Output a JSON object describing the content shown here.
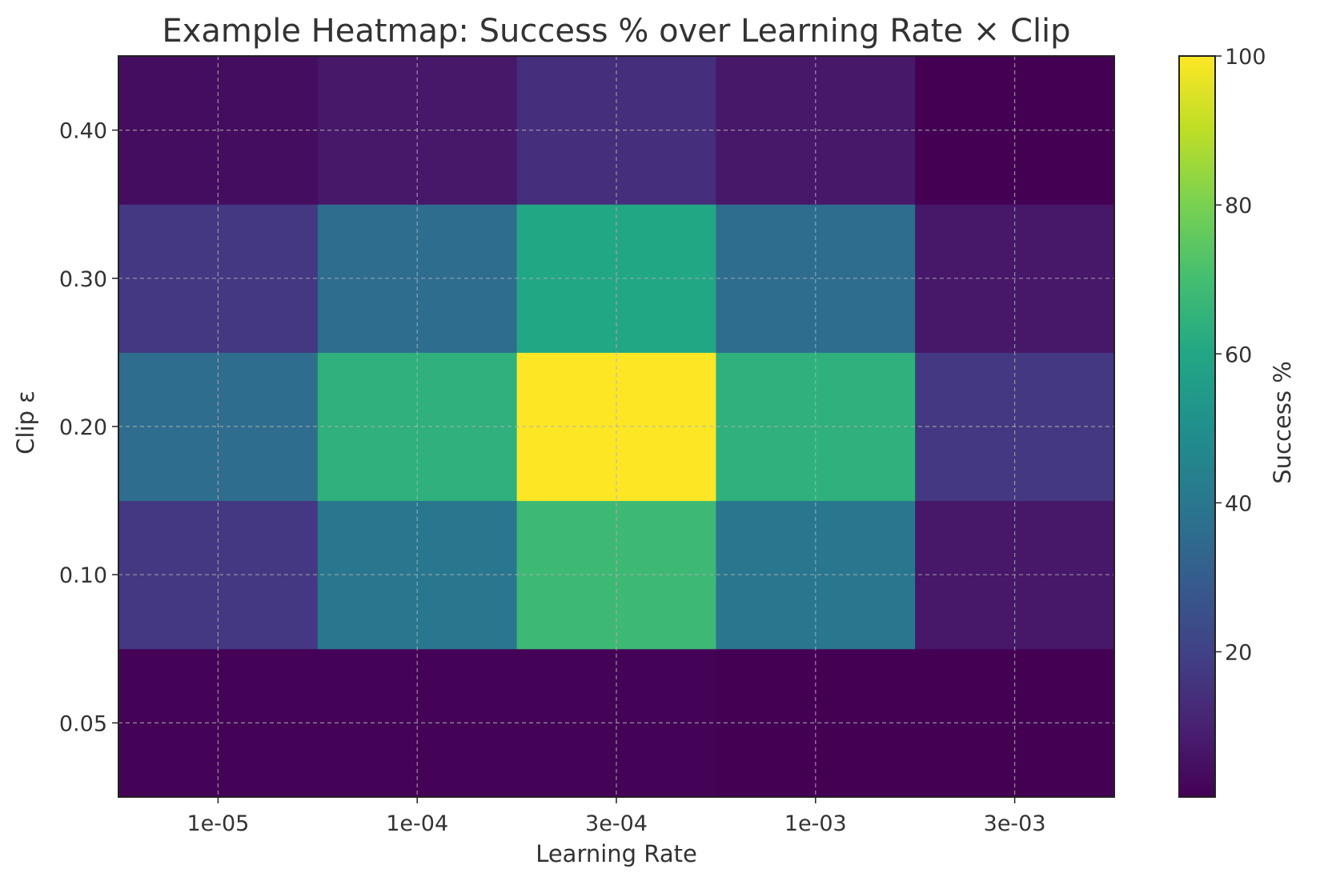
{
  "chart_data": {
    "type": "heatmap",
    "title": "Example Heatmap: Success % over Learning Rate × Clip",
    "xlabel": "Learning Rate",
    "ylabel": "Clip ε",
    "x_categories": [
      "1e-05",
      "1e-04",
      "3e-04",
      "1e-03",
      "3e-03"
    ],
    "y_categories": [
      "0.05",
      "0.10",
      "0.20",
      "0.30",
      "0.40"
    ],
    "values": [
      [
        1,
        1,
        1,
        0.5,
        0.5
      ],
      [
        17,
        40,
        68,
        40,
        7
      ],
      [
        36,
        64,
        100,
        64,
        17
      ],
      [
        17,
        36,
        60,
        36,
        7
      ],
      [
        4,
        7,
        14,
        7,
        0.5
      ]
    ],
    "colorbar": {
      "label": "Success %",
      "range": [
        0.5,
        100
      ],
      "ticks": [
        "20",
        "40",
        "60",
        "80",
        "100"
      ],
      "colormap": "viridis"
    },
    "grid": true
  }
}
